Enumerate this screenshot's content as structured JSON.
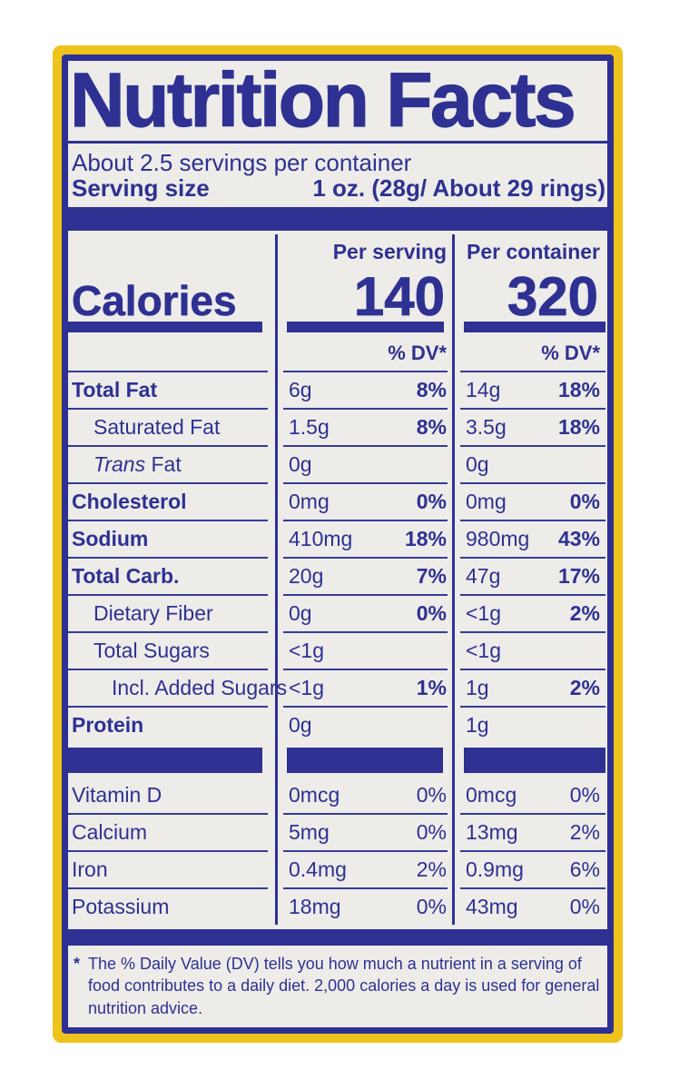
{
  "colors": {
    "blue": "#2e3192",
    "yellow": "#eec31c",
    "panel_bg": "#edece9"
  },
  "header": {
    "title": "Nutrition Facts",
    "servings_per_container": "About 2.5 servings per container",
    "serving_size_label": "Serving size",
    "serving_size_value": "1 oz. (28g/ About 29 rings)"
  },
  "calories": {
    "label": "Calories",
    "per_serving_header": "Per serving",
    "per_container_header": "Per container",
    "per_serving_value": "140",
    "per_container_value": "320",
    "dv_header_serving": "% DV*",
    "dv_header_container": "% DV*"
  },
  "nutrients": [
    {
      "label": "Total Fat",
      "italic": "",
      "bold": true,
      "indent": 0,
      "ps_amt": "6g",
      "ps_dv": "8%",
      "pc_amt": "14g",
      "pc_dv": "18%"
    },
    {
      "label": "Saturated Fat",
      "italic": "",
      "bold": false,
      "indent": 1,
      "ps_amt": "1.5g",
      "ps_dv": "8%",
      "pc_amt": "3.5g",
      "pc_dv": "18%"
    },
    {
      "label": " Fat",
      "italic": "Trans",
      "bold": false,
      "indent": 1,
      "ps_amt": "0g",
      "ps_dv": "",
      "pc_amt": "0g",
      "pc_dv": ""
    },
    {
      "label": "Cholesterol",
      "italic": "",
      "bold": true,
      "indent": 0,
      "ps_amt": "0mg",
      "ps_dv": "0%",
      "pc_amt": "0mg",
      "pc_dv": "0%"
    },
    {
      "label": "Sodium",
      "italic": "",
      "bold": true,
      "indent": 0,
      "ps_amt": "410mg",
      "ps_dv": "18%",
      "pc_amt": "980mg",
      "pc_dv": "43%"
    },
    {
      "label": "Total Carb.",
      "italic": "",
      "bold": true,
      "indent": 0,
      "ps_amt": "20g",
      "ps_dv": "7%",
      "pc_amt": "47g",
      "pc_dv": "17%"
    },
    {
      "label": "Dietary Fiber",
      "italic": "",
      "bold": false,
      "indent": 1,
      "ps_amt": "0g",
      "ps_dv": "0%",
      "pc_amt": "<1g",
      "pc_dv": "2%"
    },
    {
      "label": "Total Sugars",
      "italic": "",
      "bold": false,
      "indent": 1,
      "ps_amt": "<1g",
      "ps_dv": "",
      "pc_amt": "<1g",
      "pc_dv": ""
    },
    {
      "label": "Incl. Added Sugars",
      "italic": "",
      "bold": false,
      "indent": 2,
      "ps_amt": "<1g",
      "ps_dv": "1%",
      "pc_amt": "1g",
      "pc_dv": "2%"
    },
    {
      "label": "Protein",
      "italic": "",
      "bold": true,
      "indent": 0,
      "ps_amt": "0g",
      "ps_dv": "",
      "pc_amt": "1g",
      "pc_dv": ""
    }
  ],
  "micronutrients": [
    {
      "label": "Vitamin D",
      "ps_amt": "0mcg",
      "ps_dv": "0%",
      "pc_amt": "0mcg",
      "pc_dv": "0%"
    },
    {
      "label": "Calcium",
      "ps_amt": "5mg",
      "ps_dv": "0%",
      "pc_amt": "13mg",
      "pc_dv": "2%"
    },
    {
      "label": "Iron",
      "ps_amt": "0.4mg",
      "ps_dv": "2%",
      "pc_amt": "0.9mg",
      "pc_dv": "6%"
    },
    {
      "label": "Potassium",
      "ps_amt": "18mg",
      "ps_dv": "0%",
      "pc_amt": "43mg",
      "pc_dv": "0%"
    }
  ],
  "footnote": {
    "star": "*",
    "text": "The % Daily Value (DV) tells you how much a nutrient in a serving of food contributes to a daily diet. 2,000 calories a day is used for general nutrition advice."
  }
}
